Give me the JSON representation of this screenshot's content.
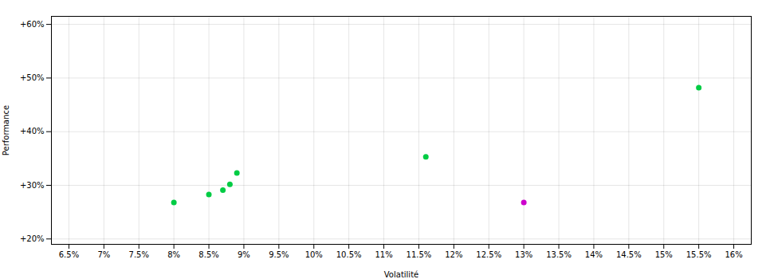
{
  "chart_data": {
    "type": "scatter",
    "xlabel": "Volatilité",
    "ylabel": "Performance",
    "xlim": [
      0.0625,
      0.1625
    ],
    "ylim": [
      0.19,
      0.615
    ],
    "xticks": [
      {
        "value": 0.065,
        "label": "6.5%"
      },
      {
        "value": 0.07,
        "label": "7%"
      },
      {
        "value": 0.075,
        "label": "7.5%"
      },
      {
        "value": 0.08,
        "label": "8%"
      },
      {
        "value": 0.085,
        "label": "8.5%"
      },
      {
        "value": 0.09,
        "label": "9%"
      },
      {
        "value": 0.095,
        "label": "9.5%"
      },
      {
        "value": 0.1,
        "label": "10%"
      },
      {
        "value": 0.105,
        "label": "10.5%"
      },
      {
        "value": 0.11,
        "label": "11%"
      },
      {
        "value": 0.115,
        "label": "11.5%"
      },
      {
        "value": 0.12,
        "label": "12%"
      },
      {
        "value": 0.125,
        "label": "12.5%"
      },
      {
        "value": 0.13,
        "label": "13%"
      },
      {
        "value": 0.135,
        "label": "13.5%"
      },
      {
        "value": 0.14,
        "label": "14%"
      },
      {
        "value": 0.145,
        "label": "14.5%"
      },
      {
        "value": 0.15,
        "label": "15%"
      },
      {
        "value": 0.155,
        "label": "15.5%"
      },
      {
        "value": 0.16,
        "label": "16%"
      }
    ],
    "yticks": [
      {
        "value": 0.2,
        "label": "+20%"
      },
      {
        "value": 0.3,
        "label": "+30%"
      },
      {
        "value": 0.4,
        "label": "+40%"
      },
      {
        "value": 0.5,
        "label": "+50%"
      },
      {
        "value": 0.6,
        "label": "+60%"
      }
    ],
    "grid": true,
    "series": [
      {
        "color": "#00cc44",
        "x": [
          0.08,
          0.085,
          0.087,
          0.088,
          0.089,
          0.116,
          0.155
        ],
        "values": [
          0.268,
          0.283,
          0.291,
          0.302,
          0.323,
          0.353,
          0.482
        ]
      },
      {
        "color": "#cc00cc",
        "x": [
          0.13
        ],
        "values": [
          0.268
        ]
      }
    ]
  }
}
